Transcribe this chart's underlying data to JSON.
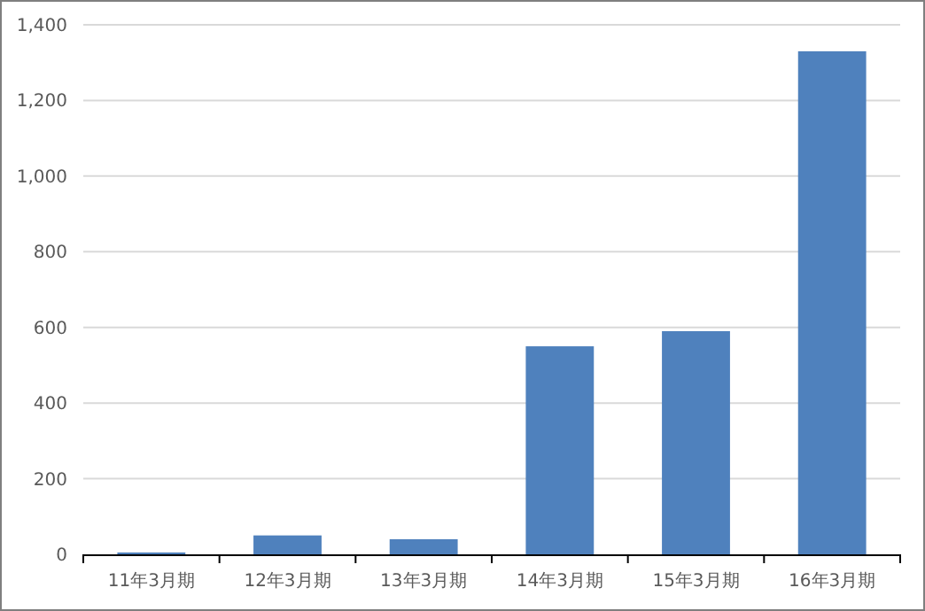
{
  "chart_data": {
    "type": "bar",
    "categories": [
      "11年3月期",
      "12年3月期",
      "13年3月期",
      "14年3月期",
      "15年3月期",
      "16年3月期"
    ],
    "values": [
      5,
      50,
      40,
      550,
      590,
      1330
    ],
    "color": "#4f81bd",
    "ylim": [
      0,
      1400
    ],
    "yticks": [
      0,
      200,
      400,
      600,
      800,
      {
        "value": 1000,
        "label": "1,000"
      },
      {
        "value": 1200,
        "label": "1,200"
      },
      {
        "value": 1400,
        "label": "1,400"
      }
    ],
    "grid": "y"
  }
}
